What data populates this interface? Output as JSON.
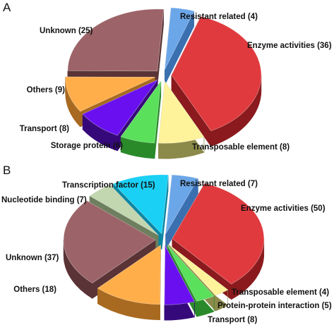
{
  "chart_data": [
    {
      "type": "pie",
      "panel": "A",
      "style": "exploded 3D pie",
      "slices": [
        {
          "label": "Resistant related (4)",
          "category": "Resistant related",
          "value": 4,
          "top": "#6ba6e8",
          "side": "#3a6fb0"
        },
        {
          "label": "Enzyme activities (36)",
          "category": "Enzyme activities",
          "value": 36,
          "top": "#e03a3e",
          "side": "#8a1a1d"
        },
        {
          "label": "Transposable element (8)",
          "category": "Transposable element",
          "value": 8,
          "top": "#fef39a",
          "side": "#8c8a4a"
        },
        {
          "label": "Storage protein (6)",
          "category": "Storage protein",
          "value": 6,
          "top": "#5be05b",
          "side": "#2a8a2a"
        },
        {
          "label": "Transport (8)",
          "category": "Transport",
          "value": 8,
          "top": "#6a10f0",
          "side": "#36097a"
        },
        {
          "label": "Others (9)",
          "category": "Others",
          "value": 9,
          "top": "#ffae4a",
          "side": "#a86a20"
        },
        {
          "label": "Unknown (25)",
          "category": "Unknown",
          "value": 25,
          "top": "#9c6468",
          "side": "#5a3336"
        }
      ]
    },
    {
      "type": "pie",
      "panel": "B",
      "style": "exploded 3D pie",
      "slices": [
        {
          "label": "Resistant related (7)",
          "category": "Resistant related",
          "value": 7,
          "top": "#6ba6e8",
          "side": "#3a6fb0"
        },
        {
          "label": "Enzyme activities (50)",
          "category": "Enzyme activities",
          "value": 50,
          "top": "#e03a3e",
          "side": "#8a1a1d"
        },
        {
          "label": "Transposable element (4)",
          "category": "Transposable element",
          "value": 4,
          "top": "#fef39a",
          "side": "#8c8a4a"
        },
        {
          "label": "Protein-protein interaction (5)",
          "category": "Protein-protein interaction",
          "value": 5,
          "top": "#5be05b",
          "side": "#2a8a2a"
        },
        {
          "label": "Transport (8)",
          "category": "Transport",
          "value": 8,
          "top": "#6a10f0",
          "side": "#36097a"
        },
        {
          "label": "Others (18)",
          "category": "Others",
          "value": 18,
          "top": "#ffae4a",
          "side": "#a86a20"
        },
        {
          "label": "Unknown (37)",
          "category": "Unknown",
          "value": 37,
          "top": "#9c6468",
          "side": "#5a3336"
        },
        {
          "label": "Nucleotide binding (7)",
          "category": "Nucleotide binding",
          "value": 7,
          "top": "#c2d6b0",
          "side": "#6d7f5e"
        },
        {
          "label": "Transcription factor (15)",
          "category": "Transcription factor",
          "value": 15,
          "top": "#1ad0f5",
          "side": "#0b86a3"
        }
      ]
    }
  ],
  "panels": [
    {
      "letter": "A"
    },
    {
      "letter": "B"
    }
  ]
}
